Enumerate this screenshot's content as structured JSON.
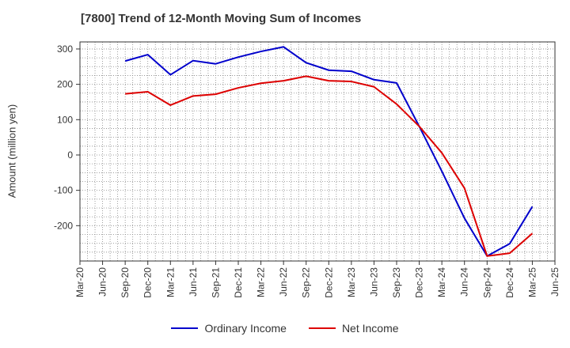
{
  "chart_data": {
    "type": "line",
    "title": "[7800]  Trend of 12-Month Moving Sum of Incomes",
    "xlabel": "",
    "ylabel": "Amount (million yen)",
    "x": [
      "Mar-20",
      "Jun-20",
      "Sep-20",
      "Dec-20",
      "Mar-21",
      "Jun-21",
      "Sep-21",
      "Dec-21",
      "Mar-22",
      "Jun-22",
      "Sep-22",
      "Dec-22",
      "Mar-23",
      "Jun-23",
      "Sep-23",
      "Dec-23",
      "Mar-24",
      "Jun-24",
      "Sep-24",
      "Dec-24",
      "Mar-25",
      "Jun-25"
    ],
    "yticks": [
      300,
      200,
      100,
      0,
      -100,
      -200
    ],
    "ylim": [
      -300,
      320
    ],
    "grid": true,
    "legend_position": "bottom",
    "series": [
      {
        "name": "Ordinary Income",
        "color": "#0000cc",
        "values": [
          null,
          null,
          266,
          284,
          227,
          267,
          258,
          277,
          293,
          306,
          261,
          240,
          237,
          213,
          204,
          81,
          -46,
          -179,
          -286,
          -251,
          -146,
          null
        ]
      },
      {
        "name": "Net Income",
        "color": "#dd0000",
        "values": [
          null,
          null,
          173,
          179,
          141,
          167,
          172,
          190,
          203,
          210,
          223,
          210,
          208,
          193,
          144,
          81,
          6,
          -94,
          -286,
          -278,
          -222,
          null
        ]
      }
    ]
  }
}
